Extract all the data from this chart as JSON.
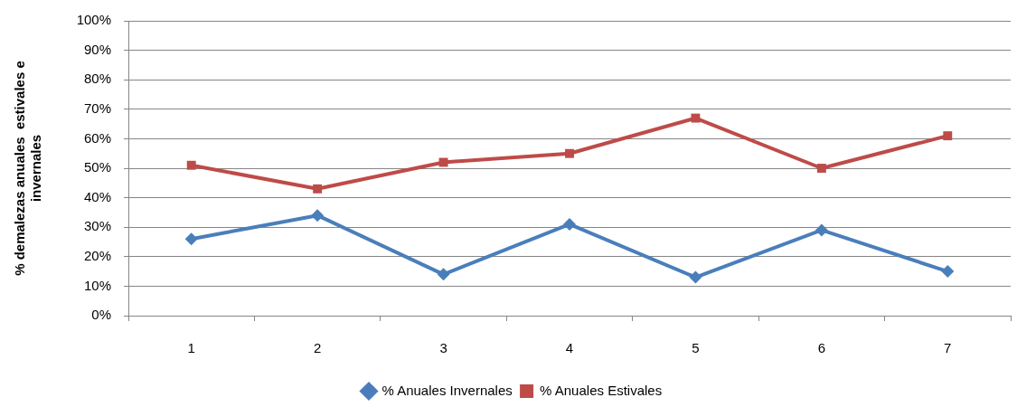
{
  "chart_data": {
    "type": "line",
    "ylabel": "% demalezas anuales  estivales e invernales",
    "categories": [
      "1",
      "2",
      "3",
      "4",
      "5",
      "6",
      "7"
    ],
    "series": [
      {
        "name": "% Anuales Invernales",
        "color": "#4a7ebb",
        "marker": "diamond",
        "values": [
          26,
          34,
          14,
          31,
          13,
          29,
          15
        ]
      },
      {
        "name": "% Anuales Estivales",
        "color": "#be4b48",
        "marker": "square",
        "values": [
          51,
          43,
          52,
          55,
          67,
          50,
          61
        ]
      }
    ],
    "ylim": [
      0,
      100
    ],
    "yticks": [
      {
        "value": 0,
        "label": "0%"
      },
      {
        "value": 10,
        "label": "10%"
      },
      {
        "value": 20,
        "label": "20%"
      },
      {
        "value": 30,
        "label": "30%"
      },
      {
        "value": 40,
        "label": "40%"
      },
      {
        "value": 50,
        "label": "50%"
      },
      {
        "value": 60,
        "label": "60%"
      },
      {
        "value": 70,
        "label": "70%"
      },
      {
        "value": 80,
        "label": "80%"
      },
      {
        "value": 90,
        "label": "90%"
      },
      {
        "value": 100,
        "label": "100%"
      }
    ],
    "grid": "y",
    "legend": "bottom",
    "line_style": "solid"
  }
}
